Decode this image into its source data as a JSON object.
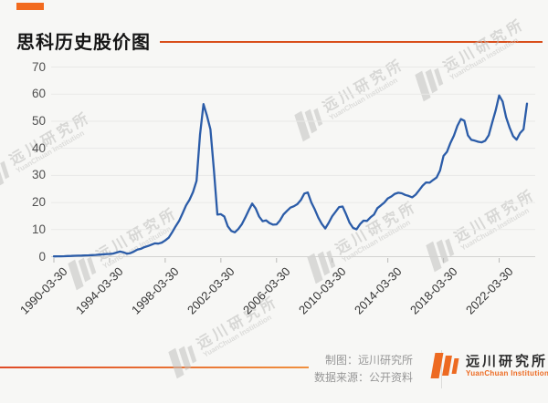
{
  "header": {
    "title": "思科历史股价图"
  },
  "watermark": {
    "text": "远川研究所",
    "subtext": "YuanChuan Institution"
  },
  "footer": {
    "credit_line1": "制图：远川研究所",
    "credit_line2": "数据来源：公开资料",
    "logo_name": "远川研究所",
    "logo_subname": "YuanChuan Institution"
  },
  "colors": {
    "accent_orange": "#ed6a21",
    "title_rule_orange": "#d94e1a",
    "line_blue": "#2b5ca8",
    "grid_gray": "#e9e9e7",
    "axis_gray": "#d2d2d0"
  },
  "chart_data": {
    "type": "line",
    "title": "思科历史股价图",
    "xlabel": "",
    "ylabel": "",
    "ylim": [
      0,
      70
    ],
    "yticks": [
      0,
      10,
      20,
      30,
      40,
      50,
      60,
      70
    ],
    "grid": true,
    "x_tick_labels": [
      "1990-03-30",
      "1994-03-30",
      "1998-03-30",
      "2002-03-30",
      "2006-03-30",
      "2010-03-30",
      "2014-03-30",
      "2018-03-30",
      "2022-03-30"
    ],
    "x_tick_interval": 16,
    "frequency_note": "quarterly closing price, one point per quarter",
    "values": [
      0.1,
      0.12,
      0.14,
      0.17,
      0.22,
      0.28,
      0.33,
      0.38,
      0.42,
      0.46,
      0.52,
      0.58,
      0.65,
      0.75,
      0.85,
      0.95,
      1.0,
      1.15,
      1.5,
      1.9,
      1.6,
      1.1,
      1.3,
      1.9,
      2.6,
      2.9,
      3.5,
      3.9,
      4.4,
      4.9,
      4.8,
      5.2,
      6.0,
      7.0,
      9.0,
      11.2,
      13.2,
      16.0,
      18.9,
      21.0,
      23.9,
      28.0,
      45.0,
      56.3,
      52.0,
      47.0,
      32.0,
      15.5,
      15.7,
      14.8,
      11.2,
      9.5,
      9.0,
      10.2,
      11.9,
      14.4,
      17.1,
      19.6,
      17.8,
      14.8,
      13.1,
      13.4,
      12.4,
      11.8,
      11.9,
      13.4,
      15.6,
      16.9,
      18.1,
      18.6,
      19.4,
      20.9,
      23.3,
      23.7,
      20.0,
      17.4,
      14.4,
      12.1,
      10.4,
      12.5,
      14.9,
      16.6,
      18.3,
      18.5,
      15.7,
      12.5,
      10.6,
      10.1,
      12.0,
      13.3,
      13.2,
      14.5,
      15.5,
      17.9,
      18.9,
      20.0,
      21.5,
      22.2,
      23.2,
      23.6,
      23.4,
      22.8,
      22.4,
      21.9,
      22.9,
      24.5,
      26.2,
      27.4,
      27.3,
      28.3,
      29.2,
      31.8,
      37.2,
      38.7,
      42.0,
      44.7,
      48.3,
      50.8,
      50.2,
      44.8,
      43.1,
      42.8,
      42.4,
      42.2,
      42.8,
      44.8,
      49.5,
      54.0,
      59.5,
      57.3,
      51.5,
      47.6,
      44.5,
      43.2,
      45.6,
      47.0,
      56.5
    ]
  }
}
